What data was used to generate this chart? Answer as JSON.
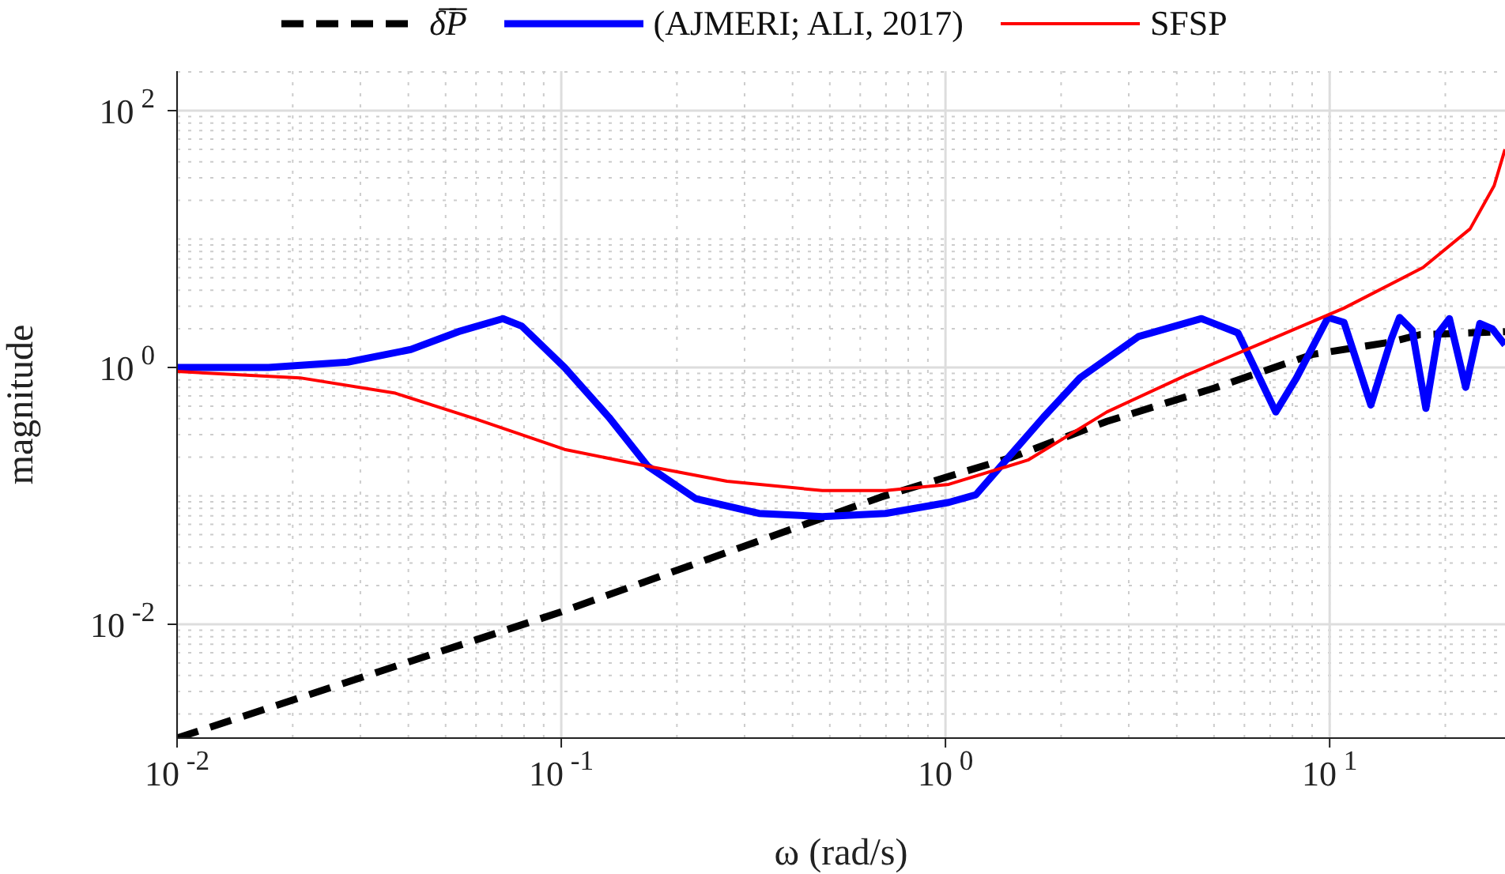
{
  "chart_data": {
    "type": "line",
    "xlabel": "ω (rad/s)",
    "ylabel": "magnitude",
    "log": "xy",
    "grid": true,
    "legend": "top",
    "marker": "none",
    "xlim": [
      0.01,
      28.6
    ],
    "ylim": [
      0.0013,
      203
    ],
    "xticks": [
      {
        "value": 0.01,
        "label": "10$^{-2}$"
      },
      {
        "value": 0.1,
        "label": "10$^{-1}$"
      },
      {
        "value": 1,
        "label": "10$^{0}$"
      },
      {
        "value": 10,
        "label": "10$^{1}$"
      }
    ],
    "yticks": [
      {
        "value": 0.01,
        "label": "10$^{-2}$"
      },
      {
        "value": 1,
        "label": "10$^{0}$"
      },
      {
        "value": 100,
        "label": "10$^{2}$"
      }
    ],
    "series": [
      {
        "name": "δ̅P̅",
        "color": "#000000",
        "line_style": "dashed",
        "x": [
          0.01,
          0.1,
          0.68,
          1.49,
          2.63,
          5.0,
          9.0,
          14.3,
          17.2,
          28.6
        ],
        "values": [
          0.0013,
          0.0125,
          0.098,
          0.2,
          0.38,
          0.69,
          1.26,
          1.57,
          1.8,
          1.9
        ]
      },
      {
        "name": "(AJMERI; ALI, 2017)",
        "color": "#0000ff",
        "line_style": "solid",
        "x": [
          0.01,
          0.0173,
          0.0278,
          0.0406,
          0.054,
          0.0705,
          0.0789,
          0.102,
          0.133,
          0.168,
          0.224,
          0.327,
          0.478,
          0.698,
          1.02,
          1.2,
          1.46,
          1.8,
          2.24,
          3.18,
          4.64,
          5.77,
          7.24,
          8.2,
          9.9,
          10.9,
          12.8,
          14.5,
          15.2,
          16.4,
          17.8,
          19.2,
          20.5,
          22.6,
          24.6,
          26.5,
          28.6
        ],
        "values": [
          1.0,
          1.0,
          1.1,
          1.38,
          1.9,
          2.4,
          2.1,
          1.0,
          0.41,
          0.17,
          0.095,
          0.073,
          0.069,
          0.073,
          0.089,
          0.102,
          0.2,
          0.41,
          0.83,
          1.74,
          2.4,
          1.86,
          0.45,
          0.83,
          2.45,
          2.24,
          0.51,
          1.7,
          2.45,
          1.95,
          0.48,
          1.86,
          2.4,
          0.7,
          2.2,
          2.0,
          1.5
        ]
      },
      {
        "name": "SFSP",
        "color": "#ff0000",
        "line_style": "solid",
        "x": [
          0.01,
          0.0209,
          0.037,
          0.0594,
          0.102,
          0.168,
          0.27,
          0.478,
          0.698,
          1.02,
          1.64,
          2.63,
          4.23,
          6.78,
          10.9,
          17.5,
          23.2,
          26.8,
          28.6
        ],
        "values": [
          0.93,
          0.83,
          0.63,
          0.4,
          0.23,
          0.17,
          0.13,
          0.11,
          0.11,
          0.123,
          0.19,
          0.45,
          0.87,
          1.58,
          2.9,
          6,
          12,
          26,
          50
        ]
      }
    ]
  }
}
